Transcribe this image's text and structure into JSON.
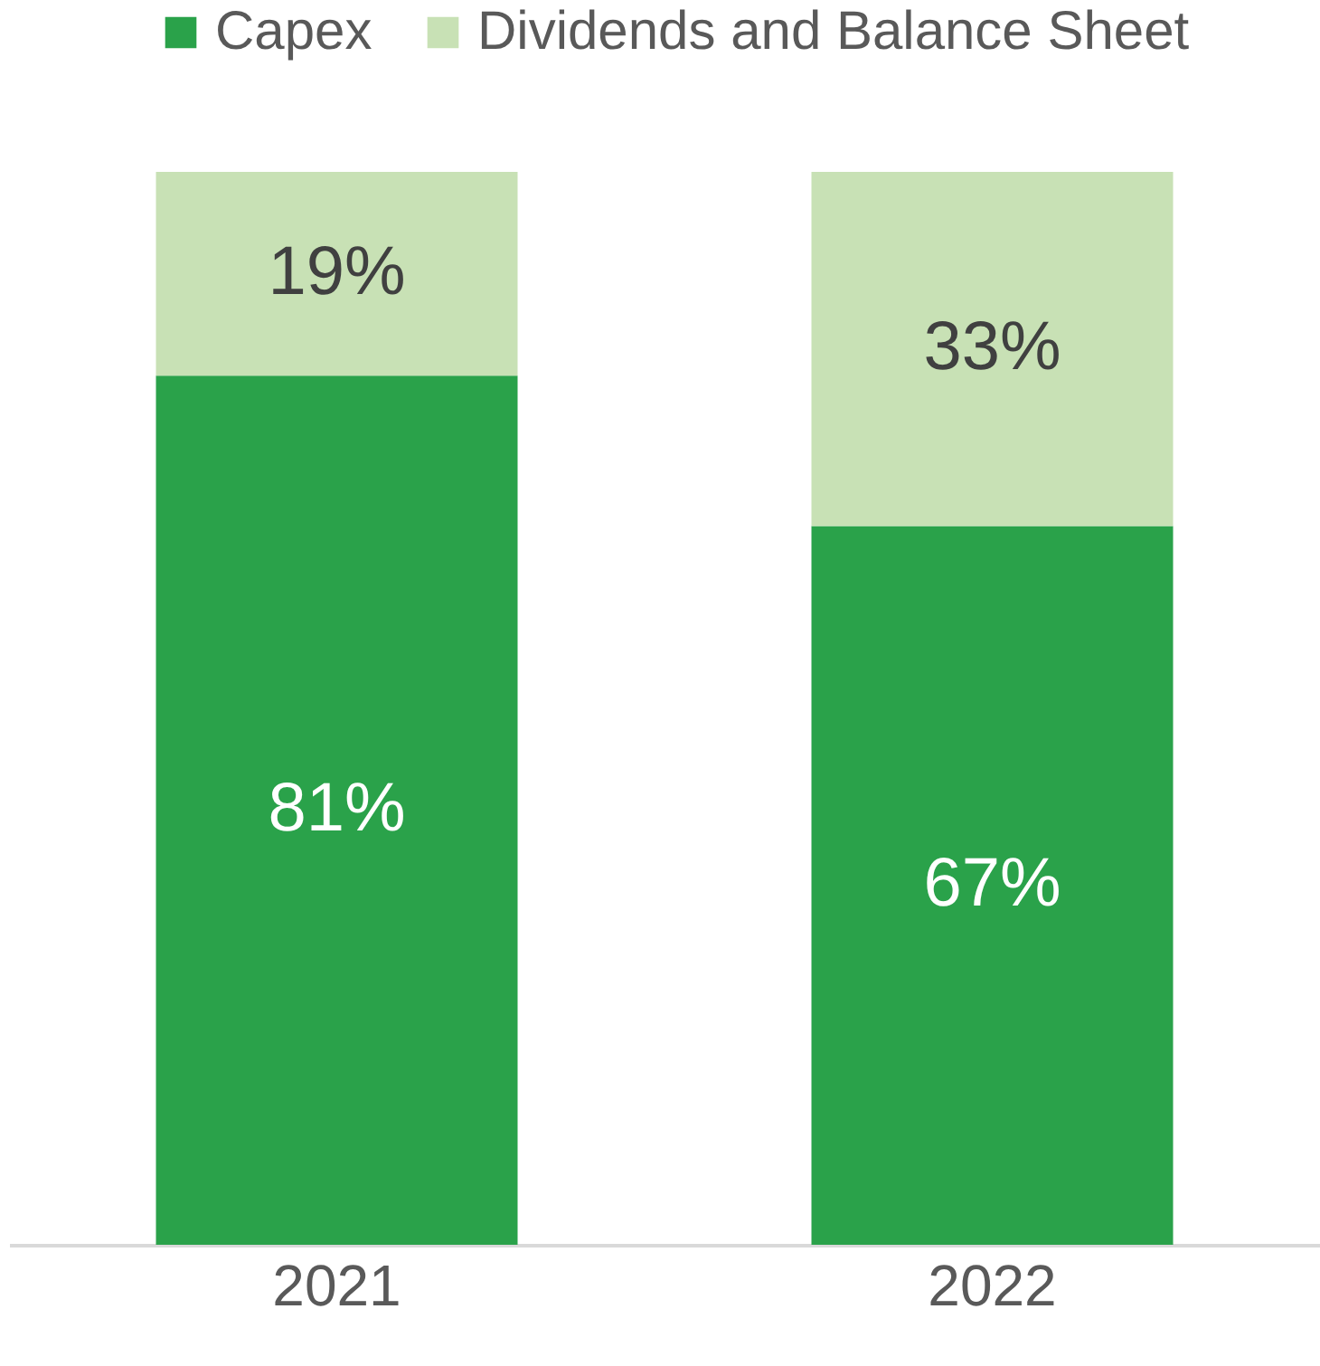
{
  "chart_data": {
    "type": "bar",
    "stacked": true,
    "categories": [
      "2021",
      "2022"
    ],
    "ylim": [
      0,
      100
    ],
    "tick_labels": "x",
    "legend": "top",
    "grid": false,
    "series": [
      {
        "name": "Capex",
        "color": "#2aa24a",
        "values": [
          81,
          67
        ],
        "value_labels": [
          "81%",
          "67%"
        ]
      },
      {
        "name": "Dividends and Balance Sheet",
        "color": "#c8e1b5",
        "values": [
          19,
          33
        ],
        "value_labels": [
          "19%",
          "33%"
        ]
      }
    ]
  }
}
